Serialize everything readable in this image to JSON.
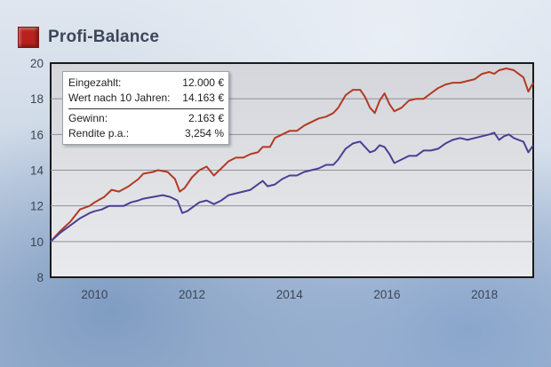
{
  "header": {
    "title": "Profi-Balance",
    "accent_color": "#b8211c"
  },
  "info_box": {
    "rows_top": [
      {
        "label": "Eingezahlt:",
        "value": "12.000 €"
      },
      {
        "label": "Wert nach 10 Jahren:",
        "value": "14.163 €"
      }
    ],
    "rows_bottom": [
      {
        "label": "Gewinn:",
        "value": "2.163 €"
      },
      {
        "label": "Rendite p.a.:",
        "value": "3,254 %"
      }
    ]
  },
  "chart_data": {
    "type": "line",
    "xlim": [
      2009.1,
      2019.0
    ],
    "ylim": [
      8,
      20
    ],
    "x_ticks": [
      2010,
      2012,
      2014,
      2016,
      2018
    ],
    "x_tick_labels": [
      "2010",
      "2012",
      "2014",
      "2016",
      "2018"
    ],
    "y_ticks": [
      8,
      10,
      12,
      14,
      16,
      18,
      20
    ],
    "y_tick_labels": [
      "8",
      "10",
      "12",
      "14",
      "16",
      "18",
      "20"
    ],
    "grid": "horizontal",
    "series": [
      {
        "color": "#b33a25",
        "points": [
          [
            2009.1,
            10.0
          ],
          [
            2009.3,
            10.6
          ],
          [
            2009.5,
            11.1
          ],
          [
            2009.7,
            11.8
          ],
          [
            2009.9,
            12.0
          ],
          [
            2010.0,
            12.2
          ],
          [
            2010.2,
            12.5
          ],
          [
            2010.35,
            12.9
          ],
          [
            2010.5,
            12.8
          ],
          [
            2010.7,
            13.1
          ],
          [
            2010.9,
            13.5
          ],
          [
            2011.0,
            13.8
          ],
          [
            2011.2,
            13.9
          ],
          [
            2011.3,
            14.0
          ],
          [
            2011.5,
            13.9
          ],
          [
            2011.65,
            13.5
          ],
          [
            2011.75,
            12.8
          ],
          [
            2011.85,
            13.0
          ],
          [
            2012.0,
            13.6
          ],
          [
            2012.15,
            14.0
          ],
          [
            2012.3,
            14.2
          ],
          [
            2012.45,
            13.7
          ],
          [
            2012.6,
            14.1
          ],
          [
            2012.75,
            14.5
          ],
          [
            2012.9,
            14.7
          ],
          [
            2013.05,
            14.7
          ],
          [
            2013.2,
            14.9
          ],
          [
            2013.35,
            15.0
          ],
          [
            2013.45,
            15.3
          ],
          [
            2013.6,
            15.3
          ],
          [
            2013.7,
            15.8
          ],
          [
            2013.85,
            16.0
          ],
          [
            2014.0,
            16.2
          ],
          [
            2014.15,
            16.2
          ],
          [
            2014.3,
            16.5
          ],
          [
            2014.45,
            16.7
          ],
          [
            2014.6,
            16.9
          ],
          [
            2014.75,
            17.0
          ],
          [
            2014.9,
            17.2
          ],
          [
            2015.0,
            17.5
          ],
          [
            2015.15,
            18.2
          ],
          [
            2015.3,
            18.5
          ],
          [
            2015.45,
            18.5
          ],
          [
            2015.55,
            18.1
          ],
          [
            2015.65,
            17.5
          ],
          [
            2015.75,
            17.2
          ],
          [
            2015.85,
            17.9
          ],
          [
            2015.95,
            18.3
          ],
          [
            2016.05,
            17.7
          ],
          [
            2016.15,
            17.3
          ],
          [
            2016.3,
            17.5
          ],
          [
            2016.45,
            17.9
          ],
          [
            2016.6,
            18.0
          ],
          [
            2016.75,
            18.0
          ],
          [
            2016.9,
            18.3
          ],
          [
            2017.05,
            18.6
          ],
          [
            2017.2,
            18.8
          ],
          [
            2017.35,
            18.9
          ],
          [
            2017.5,
            18.9
          ],
          [
            2017.65,
            19.0
          ],
          [
            2017.8,
            19.1
          ],
          [
            2017.95,
            19.4
          ],
          [
            2018.1,
            19.5
          ],
          [
            2018.2,
            19.4
          ],
          [
            2018.3,
            19.6
          ],
          [
            2018.45,
            19.7
          ],
          [
            2018.6,
            19.6
          ],
          [
            2018.7,
            19.4
          ],
          [
            2018.8,
            19.2
          ],
          [
            2018.9,
            18.4
          ],
          [
            2019.0,
            18.9
          ]
        ]
      },
      {
        "color": "#4b3f94",
        "points": [
          [
            2009.1,
            10.0
          ],
          [
            2009.3,
            10.5
          ],
          [
            2009.5,
            10.9
          ],
          [
            2009.7,
            11.3
          ],
          [
            2009.9,
            11.6
          ],
          [
            2010.0,
            11.7
          ],
          [
            2010.15,
            11.8
          ],
          [
            2010.3,
            12.0
          ],
          [
            2010.45,
            12.0
          ],
          [
            2010.6,
            12.0
          ],
          [
            2010.75,
            12.2
          ],
          [
            2010.9,
            12.3
          ],
          [
            2011.0,
            12.4
          ],
          [
            2011.2,
            12.5
          ],
          [
            2011.4,
            12.6
          ],
          [
            2011.55,
            12.5
          ],
          [
            2011.7,
            12.3
          ],
          [
            2011.8,
            11.6
          ],
          [
            2011.9,
            11.7
          ],
          [
            2012.0,
            11.9
          ],
          [
            2012.15,
            12.2
          ],
          [
            2012.3,
            12.3
          ],
          [
            2012.45,
            12.1
          ],
          [
            2012.6,
            12.3
          ],
          [
            2012.75,
            12.6
          ],
          [
            2012.9,
            12.7
          ],
          [
            2013.05,
            12.8
          ],
          [
            2013.2,
            12.9
          ],
          [
            2013.35,
            13.2
          ],
          [
            2013.45,
            13.4
          ],
          [
            2013.55,
            13.1
          ],
          [
            2013.7,
            13.2
          ],
          [
            2013.85,
            13.5
          ],
          [
            2014.0,
            13.7
          ],
          [
            2014.15,
            13.7
          ],
          [
            2014.3,
            13.9
          ],
          [
            2014.45,
            14.0
          ],
          [
            2014.6,
            14.1
          ],
          [
            2014.75,
            14.3
          ],
          [
            2014.9,
            14.3
          ],
          [
            2015.0,
            14.6
          ],
          [
            2015.15,
            15.2
          ],
          [
            2015.3,
            15.5
          ],
          [
            2015.45,
            15.6
          ],
          [
            2015.55,
            15.3
          ],
          [
            2015.65,
            15.0
          ],
          [
            2015.75,
            15.1
          ],
          [
            2015.85,
            15.4
          ],
          [
            2015.95,
            15.3
          ],
          [
            2016.05,
            14.9
          ],
          [
            2016.15,
            14.4
          ],
          [
            2016.3,
            14.6
          ],
          [
            2016.45,
            14.8
          ],
          [
            2016.6,
            14.8
          ],
          [
            2016.75,
            15.1
          ],
          [
            2016.9,
            15.1
          ],
          [
            2017.05,
            15.2
          ],
          [
            2017.2,
            15.5
          ],
          [
            2017.35,
            15.7
          ],
          [
            2017.5,
            15.8
          ],
          [
            2017.65,
            15.7
          ],
          [
            2017.8,
            15.8
          ],
          [
            2017.95,
            15.9
          ],
          [
            2018.1,
            16.0
          ],
          [
            2018.2,
            16.1
          ],
          [
            2018.3,
            15.7
          ],
          [
            2018.4,
            15.9
          ],
          [
            2018.5,
            16.0
          ],
          [
            2018.6,
            15.8
          ],
          [
            2018.7,
            15.7
          ],
          [
            2018.8,
            15.6
          ],
          [
            2018.9,
            15.0
          ],
          [
            2019.0,
            15.4
          ]
        ]
      }
    ]
  }
}
